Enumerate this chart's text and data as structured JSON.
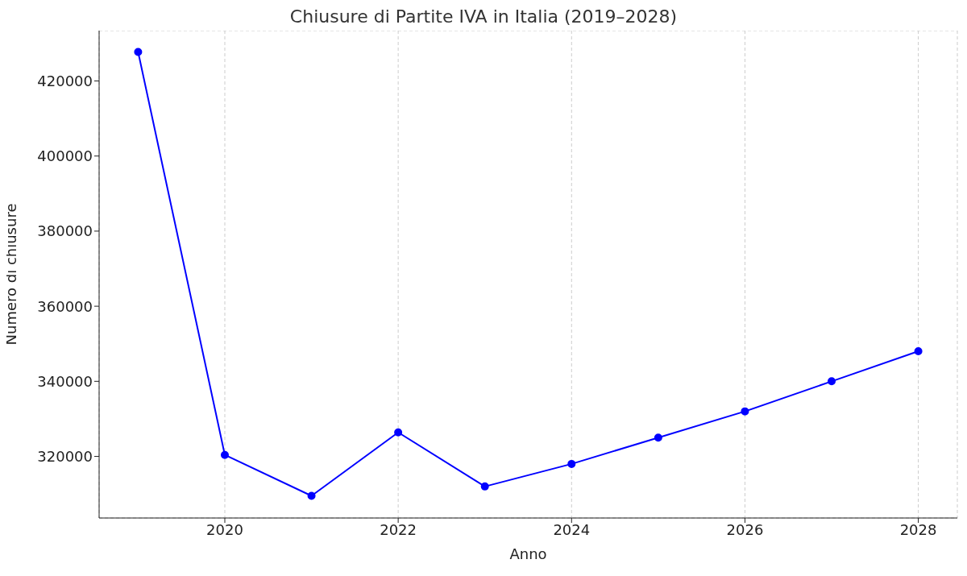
{
  "chart_data": {
    "type": "line",
    "title": "Chiusure di Partite IVA in Italia (2019–2028)",
    "xlabel": "Anno",
    "ylabel": "Numero di chiusure",
    "x": [
      2019,
      2020,
      2021,
      2022,
      2023,
      2024,
      2025,
      2026,
      2027,
      2028
    ],
    "series": [
      {
        "color": "#0000ff",
        "values": [
          427700,
          320400,
          309500,
          326400,
          312000,
          318000,
          325000,
          332000,
          340000,
          348000
        ]
      }
    ],
    "xlim": [
      2018.55,
      2028.45
    ],
    "xticks": [
      2020,
      2022,
      2024,
      2026,
      2028
    ],
    "ylim": [
      303600,
      433400
    ],
    "yticks": [
      320000,
      340000,
      360000,
      380000,
      400000,
      420000
    ],
    "grid": true,
    "marker": "circle",
    "line_style": "solid",
    "legend": false
  }
}
